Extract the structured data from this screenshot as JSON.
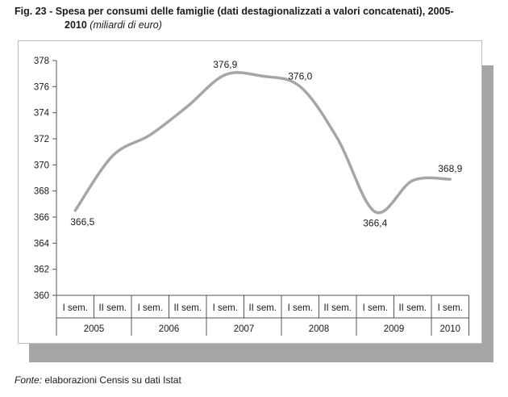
{
  "title": {
    "fig_prefix": "Fig. 23 -",
    "line1": "Spesa per consumi delle famiglie (dati destagionalizzati a valori concatenati), 2005-",
    "line2": "2010",
    "subtitle": "(miliardi di euro)"
  },
  "footer": {
    "source_label": "Fonte:",
    "source_text": "elaborazioni Censis su dati Istat"
  },
  "chart_data": {
    "type": "line",
    "title": "Spesa per consumi delle famiglie (dati destagionalizzati a valori concatenati), 2005-2010",
    "ylabel": "(miliardi di euro)",
    "xlabel": "",
    "ylim": [
      360,
      378
    ],
    "yticks": [
      360,
      362,
      364,
      366,
      368,
      370,
      372,
      374,
      376,
      378
    ],
    "grid": false,
    "legend": "none",
    "categories": [
      "I sem. 2005",
      "II sem. 2005",
      "I sem. 2006",
      "II sem. 2006",
      "I sem. 2007",
      "II sem. 2007",
      "I sem. 2008",
      "II sem. 2008",
      "I sem. 2009",
      "II sem. 2009",
      "I sem. 2010"
    ],
    "semester_labels": [
      "I sem.",
      "II sem.",
      "I sem.",
      "II sem.",
      "I sem.",
      "II sem.",
      "I sem.",
      "II sem.",
      "I sem.",
      "II sem.",
      "I sem."
    ],
    "year_groups": [
      {
        "label": "2005",
        "span": 2
      },
      {
        "label": "2006",
        "span": 2
      },
      {
        "label": "2007",
        "span": 2
      },
      {
        "label": "2008",
        "span": 2
      },
      {
        "label": "2009",
        "span": 2
      },
      {
        "label": "2010",
        "span": 1
      }
    ],
    "series": [
      {
        "values": [
          366.5,
          370.7,
          372.3,
          374.5,
          376.9,
          376.8,
          376.0,
          372.0,
          366.4,
          368.8,
          368.9
        ]
      }
    ],
    "data_labels": [
      {
        "index": 0,
        "text": "366,5"
      },
      {
        "index": 4,
        "text": "376,9"
      },
      {
        "index": 6,
        "text": "376,0"
      },
      {
        "index": 8,
        "text": "366,4"
      },
      {
        "index": 10,
        "text": "368,9"
      }
    ],
    "line_color": "#a6a6a6"
  }
}
